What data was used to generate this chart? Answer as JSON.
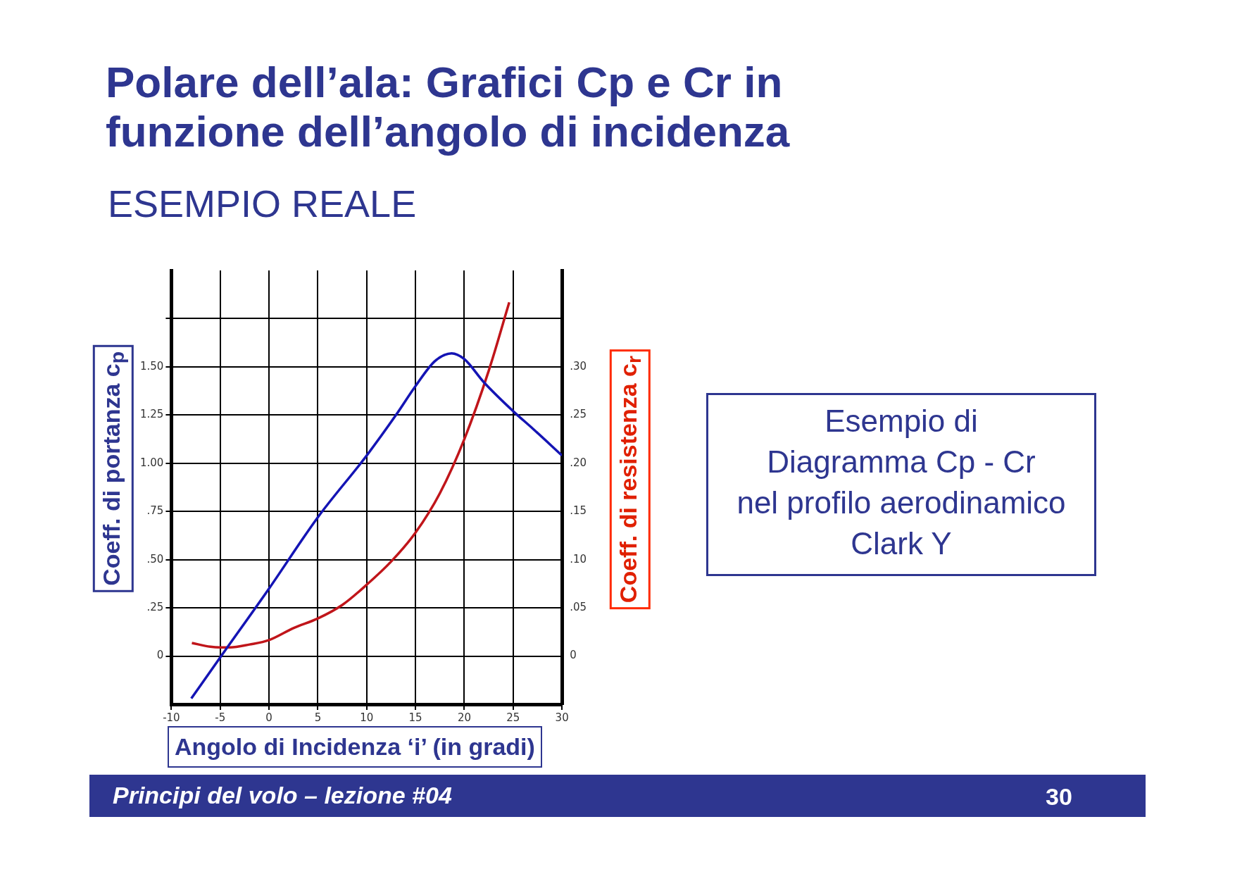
{
  "chart_data": {
    "type": "line",
    "title": "Polare dell’ala: Grafici Cp e Cr in funzione dell’angolo di incidenza",
    "subtitle": "ESEMPIO REALE",
    "xlabel": "Angolo di Incidenza ‘i’ (in gradi)",
    "ylabel": "Coeff. di portanza c$_{p}$",
    "y2label": "Coeff. di resistenza c$_{r}$",
    "annotations": [
      "Esempio di\nDiagramma Cp - Cr\nnel profilo aerodinamico\nClark Y",
      "Principi del volo – lezione #04",
      "30"
    ],
    "series": [
      {
        "color": "#1414b4",
        "x": [
          -7.96,
          -4.9,
          0,
          5,
          10,
          13,
          15,
          17,
          18.7,
          20,
          22,
          25,
          27,
          30
        ],
        "values": [
          -0.22,
          0,
          0.35,
          0.72,
          1.04,
          1.25,
          1.4,
          1.53,
          1.57,
          1.54,
          1.42,
          1.27,
          1.18,
          1.04
        ]
      },
      {
        "color": "#c0151a",
        "axis": "y2",
        "x": [
          -7.9,
          -6,
          -5,
          -4,
          -2,
          0,
          2.5,
          5,
          7.5,
          10,
          12.5,
          15,
          17.5,
          20,
          22.5,
          24.6
        ],
        "values": [
          0.0136,
          0.0097,
          0.009,
          0.009,
          0.012,
          0.0166,
          0.029,
          0.039,
          0.053,
          0.074,
          0.098,
          0.128,
          0.169,
          0.225,
          0.296,
          0.367
        ]
      }
    ],
    "xlim": [
      -10,
      30
    ],
    "xticks": [
      -10,
      -5,
      0,
      5,
      10,
      15,
      20,
      25,
      30
    ],
    "ylim": [
      -0.25,
      2.0
    ],
    "yticks": [
      {
        "value": 0,
        "label": "0"
      },
      {
        "value": 0.25,
        "label": ".25"
      },
      {
        "value": 0.5,
        "label": ".50"
      },
      {
        "value": 0.75,
        "label": ".75"
      },
      {
        "value": 1,
        "label": "1.00"
      },
      {
        "value": 1.25,
        "label": "1.25"
      },
      {
        "value": 1.5,
        "label": "1.50"
      },
      {
        "value": 1.75,
        "label": null
      }
    ],
    "y2lim": [
      -0.05,
      0.4
    ],
    "y2ticks": [
      {
        "value": 0,
        "label": "0"
      },
      {
        "value": 0.05,
        "label": ".05"
      },
      {
        "value": 0.1,
        "label": ".10"
      },
      {
        "value": 0.15,
        "label": ".15"
      },
      {
        "value": 0.2,
        "label": ".20"
      },
      {
        "value": 0.25,
        "label": ".25"
      },
      {
        "value": 0.3,
        "label": ".30"
      }
    ],
    "grid": true,
    "marker": "none",
    "line_style": "solid"
  }
}
